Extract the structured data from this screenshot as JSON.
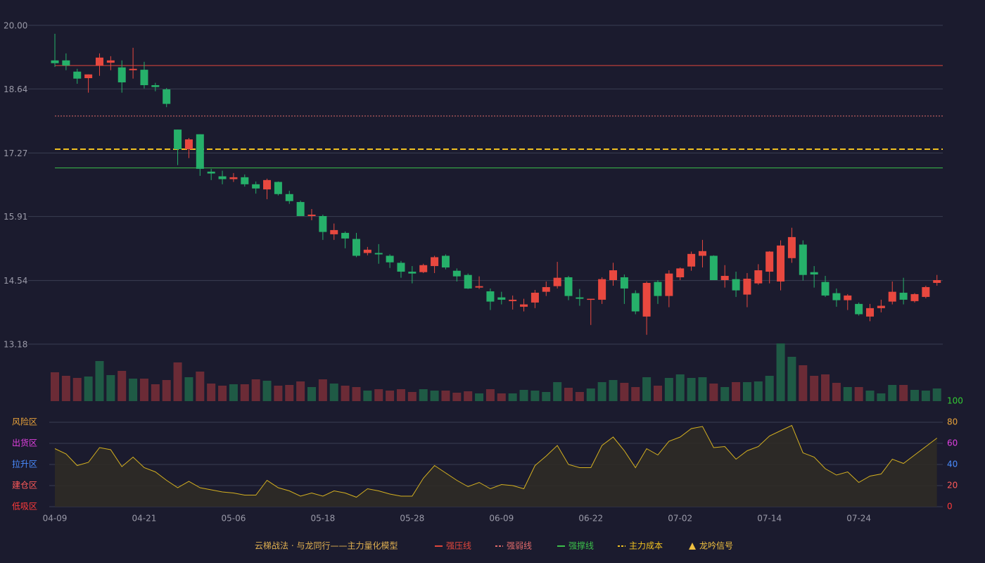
{
  "chart_data": {
    "type": "candlestick",
    "categories": [
      "04-09",
      null,
      null,
      null,
      null,
      null,
      null,
      null,
      "04-21",
      null,
      null,
      null,
      null,
      null,
      null,
      null,
      "05-06",
      null,
      null,
      null,
      null,
      null,
      null,
      null,
      "05-18",
      null,
      null,
      null,
      null,
      null,
      null,
      null,
      "05-28",
      null,
      null,
      null,
      null,
      null,
      null,
      null,
      "06-09",
      null,
      null,
      null,
      null,
      null,
      null,
      null,
      "06-22",
      null,
      null,
      null,
      null,
      null,
      null,
      null,
      "07-02",
      null,
      null,
      null,
      null,
      null,
      null,
      null,
      "07-14",
      null,
      null,
      null,
      null,
      null,
      null,
      null,
      "07-24",
      null,
      null,
      null,
      null,
      null,
      null,
      null
    ],
    "open": [
      19.25,
      19.25,
      19.01,
      18.87,
      19.14,
      19.2,
      19.1,
      19.04,
      19.05,
      18.72,
      18.63,
      17.77,
      17.35,
      17.67,
      16.87,
      16.77,
      16.71,
      16.75,
      16.6,
      16.49,
      16.65,
      16.39,
      16.22,
      15.92,
      15.92,
      15.53,
      15.56,
      15.43,
      15.13,
      15.13,
      15.07,
      14.92,
      14.73,
      14.72,
      14.85,
      15.07,
      14.75,
      14.66,
      14.39,
      14.31,
      14.18,
      14.1,
      13.98,
      14.07,
      14.3,
      14.42,
      14.61,
      14.18,
      14.13,
      14.13,
      14.55,
      14.61,
      14.27,
      13.77,
      14.51,
      14.21,
      14.61,
      14.84,
      15.07,
      15.07,
      14.55,
      14.57,
      14.24,
      14.48,
      14.73,
      14.52,
      15.02,
      15.31,
      14.72,
      14.51,
      14.27,
      14.12,
      14.04,
      13.77,
      13.95,
      14.09,
      14.28,
      14.1,
      14.19,
      14.49
    ],
    "high": [
      19.82,
      19.4,
      19.07,
      18.95,
      19.4,
      19.34,
      19.25,
      19.52,
      19.22,
      18.77,
      18.66,
      17.77,
      17.59,
      17.67,
      16.93,
      16.89,
      16.84,
      16.81,
      16.66,
      16.72,
      16.66,
      16.46,
      16.25,
      16.07,
      15.95,
      15.76,
      15.59,
      15.56,
      15.26,
      15.32,
      15.1,
      14.96,
      14.85,
      14.9,
      15.07,
      15.1,
      14.8,
      14.69,
      14.63,
      14.37,
      14.3,
      14.22,
      14.15,
      14.34,
      14.52,
      14.94,
      14.64,
      14.36,
      14.15,
      14.61,
      14.92,
      14.67,
      14.33,
      14.52,
      14.55,
      14.76,
      14.82,
      15.16,
      15.41,
      15.08,
      14.87,
      14.73,
      14.7,
      14.89,
      15.17,
      15.4,
      15.67,
      15.4,
      14.85,
      14.64,
      14.37,
      14.25,
      14.07,
      14.04,
      14.13,
      14.52,
      14.6,
      14.27,
      14.43,
      14.66
    ],
    "low": [
      19.11,
      19.04,
      18.75,
      18.56,
      18.92,
      19.04,
      18.56,
      18.86,
      18.65,
      18.59,
      18.25,
      17.01,
      17.16,
      16.78,
      16.69,
      16.6,
      16.65,
      16.55,
      16.4,
      16.28,
      16.36,
      16.18,
      15.92,
      15.83,
      15.41,
      15.41,
      15.23,
      15.04,
      15.08,
      14.9,
      14.81,
      14.6,
      14.48,
      14.7,
      14.7,
      14.78,
      14.52,
      14.36,
      14.36,
      13.91,
      14.03,
      13.92,
      13.88,
      13.95,
      14.21,
      14.37,
      14.12,
      14.0,
      13.59,
      14.04,
      14.43,
      14.04,
      13.82,
      13.38,
      14.04,
      13.97,
      14.55,
      14.75,
      14.82,
      14.55,
      14.39,
      14.19,
      13.97,
      14.45,
      14.48,
      14.33,
      14.92,
      14.54,
      14.39,
      14.19,
      13.98,
      13.91,
      13.79,
      13.67,
      13.86,
      14.03,
      14.03,
      14.07,
      14.16,
      14.43
    ],
    "close": [
      19.19,
      19.14,
      18.86,
      18.95,
      19.31,
      19.25,
      18.78,
      19.07,
      18.72,
      18.68,
      18.32,
      17.35,
      17.56,
      16.93,
      16.83,
      16.71,
      16.75,
      16.6,
      16.51,
      16.69,
      16.39,
      16.24,
      15.92,
      15.95,
      15.58,
      15.62,
      15.44,
      15.07,
      15.2,
      15.1,
      14.93,
      14.73,
      14.69,
      14.87,
      15.04,
      14.82,
      14.63,
      14.37,
      14.42,
      14.09,
      14.13,
      14.13,
      14.03,
      14.28,
      14.4,
      14.6,
      14.21,
      14.15,
      14.15,
      14.57,
      14.76,
      14.37,
      13.88,
      14.49,
      14.21,
      14.69,
      14.8,
      15.11,
      15.17,
      14.55,
      14.64,
      14.33,
      14.58,
      14.76,
      15.16,
      15.29,
      15.47,
      14.66,
      14.67,
      14.22,
      14.12,
      14.22,
      13.82,
      13.95,
      14.0,
      14.3,
      14.13,
      14.25,
      14.4,
      14.55
    ],
    "up_color": "#e8483f",
    "down_color": "#26b06a",
    "ylim": [
      13.18,
      20
    ],
    "yticks": [
      {
        "value": 20,
        "label": "20.00"
      },
      18.64,
      17.27,
      15.91,
      14.54,
      13.18
    ],
    "grid": true,
    "levels": [
      {
        "name": "强压线",
        "value": 19.14,
        "color": "#e0463c",
        "style": "solid"
      },
      {
        "name": "强弱线",
        "value": 18.06,
        "color": "#e06a6a",
        "style": "dotted"
      },
      {
        "name": "强撑线",
        "value": 16.95,
        "color": "#3bbf4a",
        "style": "solid"
      },
      {
        "name": "主力成本",
        "value": 17.35,
        "color": "#f0c020",
        "style": "dashed"
      }
    ],
    "legend_title": "云梯战法 · 与龙同行——主力量化模型",
    "signal_legend": "龙吟信号",
    "volume": [
      41,
      36,
      33,
      35,
      57,
      37,
      43,
      32,
      32,
      24,
      30,
      55,
      34,
      42,
      25,
      22,
      24,
      24,
      31,
      29,
      22,
      23,
      28,
      20,
      31,
      25,
      22,
      20,
      15,
      17,
      15,
      17,
      13,
      17,
      15,
      15,
      12,
      14,
      11,
      17,
      11,
      11,
      16,
      15,
      13,
      27,
      19,
      13,
      18,
      27,
      30,
      26,
      20,
      34,
      22,
      33,
      38,
      33,
      34,
      25,
      20,
      27,
      27,
      28,
      36,
      82,
      63,
      51,
      36,
      38,
      26,
      20,
      20,
      15,
      11,
      23,
      23,
      16,
      15,
      18
    ],
    "volume_colors": [
      "#6b2b36",
      "#6b2b36",
      "#6b2b36",
      "#1f5a45",
      "#1f5a45",
      "#1f5a45",
      "#6b2b36",
      "#1f5a45",
      "#6b2b36",
      "#6b2b36",
      "#6b2b36",
      "#6b2b36",
      "#1f5a45",
      "#6b2b36",
      "#6b2b36",
      "#6b2b36",
      "#1f5a45",
      "#6b2b36",
      "#6b2b36",
      "#1f5a45",
      "#6b2b36",
      "#6b2b36",
      "#6b2b36",
      "#1f5a45",
      "#6b2b36",
      "#1f5a45",
      "#6b2b36",
      "#6b2b36",
      "#1f5a45",
      "#6b2b36",
      "#6b2b36",
      "#6b2b36",
      "#6b2b36",
      "#1f5a45",
      "#1f5a45",
      "#6b2b36",
      "#6b2b36",
      "#6b2b36",
      "#1f5a45",
      "#6b2b36",
      "#6b2b36",
      "#1f5a45",
      "#1f5a45",
      "#1f5a45",
      "#1f5a45",
      "#1f5a45",
      "#6b2b36",
      "#6b2b36",
      "#1f5a45",
      "#1f5a45",
      "#1f5a45",
      "#6b2b36",
      "#6b2b36",
      "#1f5a45",
      "#6b2b36",
      "#1f5a45",
      "#1f5a45",
      "#1f5a45",
      "#1f5a45",
      "#6b2b36",
      "#1f5a45",
      "#6b2b36",
      "#1f5a45",
      "#1f5a45",
      "#1f5a45",
      "#1f5a45",
      "#1f5a45",
      "#6b2b36",
      "#6b2b36",
      "#6b2b36",
      "#6b2b36",
      "#1f5a45",
      "#6b2b36",
      "#1f5a45",
      "#1f5a45",
      "#1f5a45",
      "#6b2b36",
      "#1f5a45",
      "#1f5a45",
      "#1f5a45"
    ],
    "indicator": {
      "values": [
        55,
        50,
        39,
        42,
        56,
        54,
        38,
        47,
        37,
        33,
        25,
        18,
        24,
        18,
        16,
        14,
        13,
        11,
        11,
        25,
        18,
        15,
        10,
        13,
        10,
        15,
        13,
        9,
        17,
        15,
        12,
        10,
        10,
        27,
        39,
        32,
        25,
        19,
        23,
        17,
        21,
        20,
        17,
        39,
        48,
        58,
        40,
        37,
        37,
        58,
        66,
        53,
        37,
        55,
        49,
        62,
        66,
        74,
        76,
        56,
        57,
        45,
        53,
        57,
        67,
        72,
        77,
        51,
        47,
        36,
        30,
        33,
        23,
        29,
        31,
        45,
        41,
        49,
        57,
        65
      ],
      "color": "#d4b020",
      "fill": "#2f2b26",
      "ylim": [
        0,
        100
      ],
      "yticks": [
        0,
        20,
        40,
        60,
        80,
        100
      ],
      "ytick_colors": [
        "#ff3b3b",
        "#ff5a5a",
        "#4a8cff",
        "#e040e0",
        "#e8a23a",
        "#33cc33"
      ],
      "zones": [
        {
          "label": "风险区",
          "value": 80,
          "color": "#e8a23a"
        },
        {
          "label": "出货区",
          "value": 60,
          "color": "#e040e0"
        },
        {
          "label": "拉升区",
          "value": 40,
          "color": "#4a8cff"
        },
        {
          "label": "建仓区",
          "value": 20,
          "color": "#ff5a5a"
        },
        {
          "label": "低吸区",
          "value": 0,
          "color": "#ff3b3b"
        }
      ]
    }
  }
}
